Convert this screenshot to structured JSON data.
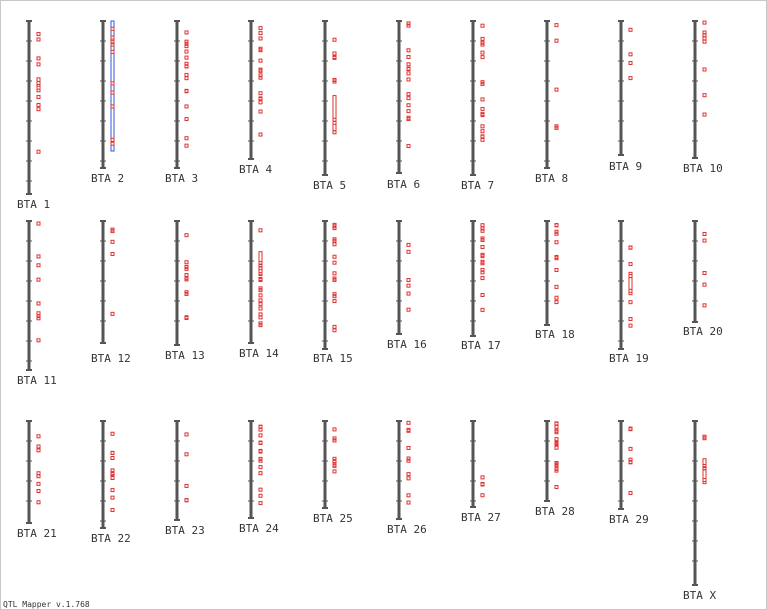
{
  "chromosomes": [
    {
      "label": "BTA 1"
    },
    {
      "label": "BTA 2"
    },
    {
      "label": "BTA 3"
    },
    {
      "label": "BTA 4"
    },
    {
      "label": "BTA 5"
    },
    {
      "label": "BTA 6"
    },
    {
      "label": "BTA 7"
    },
    {
      "label": "BTA 8"
    },
    {
      "label": "BTA 9"
    },
    {
      "label": "BTA 10"
    },
    {
      "label": "BTA 11"
    },
    {
      "label": "BTA 12"
    },
    {
      "label": "BTA 13"
    },
    {
      "label": "BTA 14"
    },
    {
      "label": "BTA 15"
    },
    {
      "label": "BTA 16"
    },
    {
      "label": "BTA 17"
    },
    {
      "label": "BTA 18"
    },
    {
      "label": "BTA 19"
    },
    {
      "label": "BTA 20"
    },
    {
      "label": "BTA 21"
    },
    {
      "label": "BTA 22"
    },
    {
      "label": "BTA 23"
    },
    {
      "label": "BTA 24"
    },
    {
      "label": "BTA 25"
    },
    {
      "label": "BTA 26"
    },
    {
      "label": "BTA 27"
    },
    {
      "label": "BTA 28"
    },
    {
      "label": "BTA 29"
    },
    {
      "label": "BTA X"
    }
  ],
  "footer": "QTL Mapper v.1.768"
}
